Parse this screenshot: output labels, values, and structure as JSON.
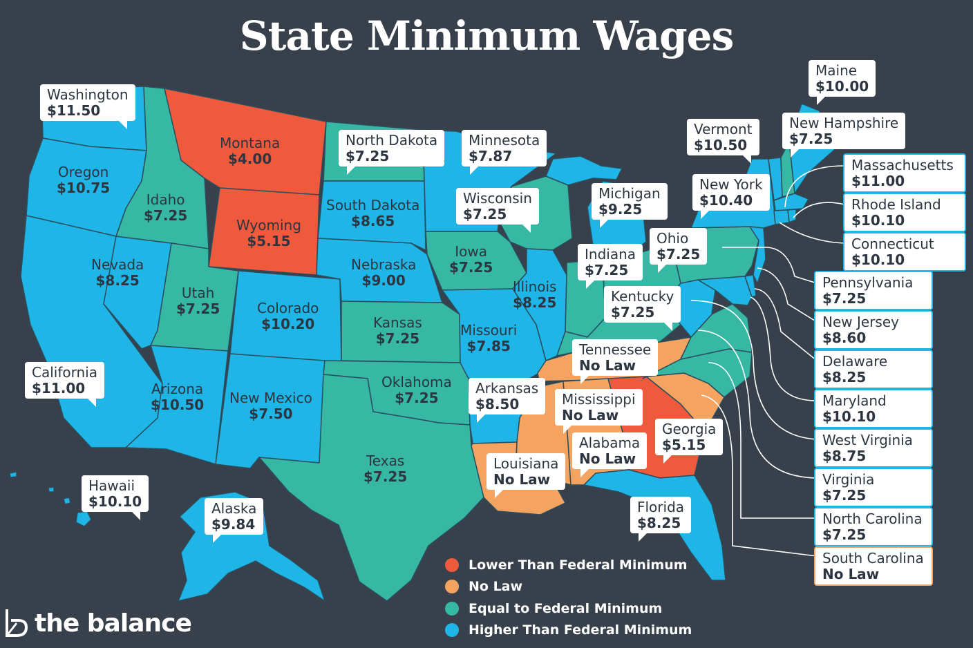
{
  "title": "State Minimum Wages",
  "colors": {
    "background": "#37404b",
    "lower": "#f05a3c",
    "no_law": "#f5a360",
    "equal": "#36b8a4",
    "higher": "#1fb5e7",
    "border": "#2a4e5e"
  },
  "states": {
    "washington": {
      "name": "Washington",
      "wage": "$11.50",
      "category": "higher"
    },
    "oregon": {
      "name": "Oregon",
      "wage": "$10.75",
      "category": "higher"
    },
    "california": {
      "name": "California",
      "wage": "$11.00",
      "category": "higher"
    },
    "nevada": {
      "name": "Nevada",
      "wage": "$8.25",
      "category": "higher"
    },
    "idaho": {
      "name": "Idaho",
      "wage": "$7.25",
      "category": "equal"
    },
    "montana": {
      "name": "Montana",
      "wage": "$4.00",
      "category": "lower"
    },
    "wyoming": {
      "name": "Wyoming",
      "wage": "$5.15",
      "category": "lower"
    },
    "utah": {
      "name": "Utah",
      "wage": "$7.25",
      "category": "equal"
    },
    "arizona": {
      "name": "Arizona",
      "wage": "$10.50",
      "category": "higher"
    },
    "colorado": {
      "name": "Colorado",
      "wage": "$10.20",
      "category": "higher"
    },
    "new_mexico": {
      "name": "New Mexico",
      "wage": "$7.50",
      "category": "higher"
    },
    "north_dakota": {
      "name": "North Dakota",
      "wage": "$7.25",
      "category": "equal"
    },
    "south_dakota": {
      "name": "South Dakota",
      "wage": "$8.65",
      "category": "higher"
    },
    "nebraska": {
      "name": "Nebraska",
      "wage": "$9.00",
      "category": "higher"
    },
    "kansas": {
      "name": "Kansas",
      "wage": "$7.25",
      "category": "equal"
    },
    "oklahoma": {
      "name": "Oklahoma",
      "wage": "$7.25",
      "category": "equal"
    },
    "texas": {
      "name": "Texas",
      "wage": "$7.25",
      "category": "equal"
    },
    "minnesota": {
      "name": "Minnesota",
      "wage": "$7.87",
      "category": "higher"
    },
    "iowa": {
      "name": "Iowa",
      "wage": "$7.25",
      "category": "equal"
    },
    "missouri": {
      "name": "Missouri",
      "wage": "$7.85",
      "category": "higher"
    },
    "arkansas": {
      "name": "Arkansas",
      "wage": "$8.50",
      "category": "higher"
    },
    "louisiana": {
      "name": "Louisiana",
      "wage": "No Law",
      "category": "no_law"
    },
    "wisconsin": {
      "name": "Wisconsin",
      "wage": "$7.25",
      "category": "equal"
    },
    "illinois": {
      "name": "Illinois",
      "wage": "$8.25",
      "category": "higher"
    },
    "michigan": {
      "name": "Michigan",
      "wage": "$9.25",
      "category": "higher"
    },
    "indiana": {
      "name": "Indiana",
      "wage": "$7.25",
      "category": "equal"
    },
    "ohio": {
      "name": "Ohio",
      "wage": "$7.25",
      "category": "equal"
    },
    "kentucky": {
      "name": "Kentucky",
      "wage": "$7.25",
      "category": "equal"
    },
    "tennessee": {
      "name": "Tennessee",
      "wage": "No Law",
      "category": "no_law"
    },
    "mississippi": {
      "name": "Mississippi",
      "wage": "No Law",
      "category": "no_law"
    },
    "alabama": {
      "name": "Alabama",
      "wage": "No Law",
      "category": "no_law"
    },
    "georgia": {
      "name": "Georgia",
      "wage": "$5.15",
      "category": "lower"
    },
    "florida": {
      "name": "Florida",
      "wage": "$8.25",
      "category": "higher"
    },
    "hawaii": {
      "name": "Hawaii",
      "wage": "$10.10",
      "category": "higher"
    },
    "alaska": {
      "name": "Alaska",
      "wage": "$9.84",
      "category": "higher"
    },
    "maine": {
      "name": "Maine",
      "wage": "$10.00",
      "category": "higher"
    },
    "new_hampshire": {
      "name": "New Hampshire",
      "wage": "$7.25",
      "category": "equal"
    },
    "vermont": {
      "name": "Vermont",
      "wage": "$10.50",
      "category": "higher"
    },
    "new_york": {
      "name": "New York",
      "wage": "$10.40",
      "category": "higher"
    },
    "massachusetts": {
      "name": "Massachusetts",
      "wage": "$11.00",
      "category": "higher"
    },
    "rhode_island": {
      "name": "Rhode Island",
      "wage": "$10.10",
      "category": "higher"
    },
    "connecticut": {
      "name": "Connecticut",
      "wage": "$10.10",
      "category": "higher"
    },
    "pennsylvania": {
      "name": "Pennsylvania",
      "wage": "$7.25",
      "category": "equal"
    },
    "new_jersey": {
      "name": "New Jersey",
      "wage": "$8.60",
      "category": "higher"
    },
    "delaware": {
      "name": "Delaware",
      "wage": "$8.25",
      "category": "higher"
    },
    "maryland": {
      "name": "Maryland",
      "wage": "$10.10",
      "category": "higher"
    },
    "west_virginia": {
      "name": "West Virginia",
      "wage": "$8.75",
      "category": "higher"
    },
    "virginia": {
      "name": "Virginia",
      "wage": "$7.25",
      "category": "equal"
    },
    "north_carolina": {
      "name": "North Carolina",
      "wage": "$7.25",
      "category": "equal"
    },
    "south_carolina": {
      "name": "South Carolina",
      "wage": "No Law",
      "category": "no_law"
    }
  },
  "legend": [
    {
      "label": "Lower Than Federal Minimum",
      "color": "#f05a3c"
    },
    {
      "label": "No Law",
      "color": "#f5a360"
    },
    {
      "label": "Equal to Federal Minimum",
      "color": "#36b8a4"
    },
    {
      "label": "Higher Than Federal Minimum",
      "color": "#1fb5e7"
    }
  ],
  "brand": {
    "name": "the balance"
  }
}
